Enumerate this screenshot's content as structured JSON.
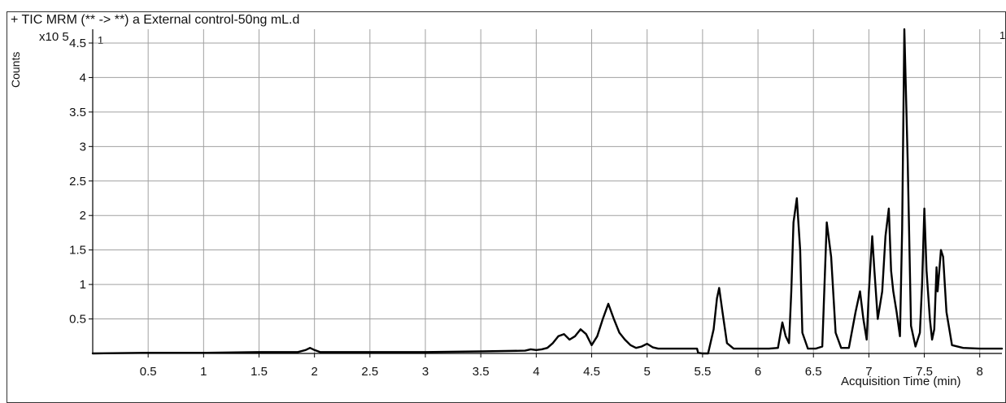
{
  "chart_data": {
    "type": "line",
    "title": "+ TIC MRM (** -> **) a External control-50ng mL.d",
    "ylabel": "Counts",
    "y_multiplier": "x10 5",
    "xlabel": "Acquisition Time (min)",
    "panel_id_left": "1",
    "panel_id_right": "1",
    "xlim": [
      0,
      8.2
    ],
    "ylim": [
      0,
      4.7
    ],
    "x_ticks": [
      0.5,
      1,
      1.5,
      2,
      2.5,
      3,
      3.5,
      4,
      4.5,
      5,
      5.5,
      6,
      6.5,
      7,
      7.5,
      8
    ],
    "x_tick_labels": [
      "0.5",
      "1",
      "1.5",
      "2",
      "2.5",
      "3",
      "3.5",
      "4",
      "4.5",
      "5",
      "5.5",
      "6",
      "6.5",
      "7",
      "7.5",
      "8"
    ],
    "y_ticks": [
      0.5,
      1,
      1.5,
      2,
      2.5,
      3,
      3.5,
      4,
      4.5
    ],
    "y_tick_labels": [
      "0.5",
      "1",
      "1.5",
      "2",
      "2.5",
      "3",
      "3.5",
      "4",
      "4.5"
    ],
    "grid": true,
    "line_color": "#000000",
    "grid_color": "#a0a0a0",
    "series": [
      {
        "x": [
          0.0,
          0.5,
          1.0,
          1.5,
          1.85,
          1.92,
          1.96,
          2.0,
          2.05,
          2.2,
          3.0,
          3.5,
          3.9,
          3.95,
          4.0,
          4.05,
          4.1,
          4.15,
          4.2,
          4.25,
          4.3,
          4.35,
          4.4,
          4.45,
          4.5,
          4.55,
          4.6,
          4.65,
          4.7,
          4.75,
          4.8,
          4.85,
          4.9,
          4.95,
          5.0,
          5.05,
          5.1,
          5.3,
          5.45,
          5.46,
          5.5,
          5.55,
          5.6,
          5.63,
          5.65,
          5.68,
          5.72,
          5.78,
          5.85,
          6.0,
          6.1,
          6.18,
          6.22,
          6.25,
          6.28,
          6.3,
          6.32,
          6.35,
          6.38,
          6.4,
          6.45,
          6.52,
          6.58,
          6.62,
          6.66,
          6.7,
          6.75,
          6.82,
          6.88,
          6.92,
          6.95,
          6.98,
          7.0,
          7.03,
          7.05,
          7.08,
          7.12,
          7.15,
          7.18,
          7.2,
          7.22,
          7.25,
          7.28,
          7.3,
          7.32,
          7.35,
          7.38,
          7.42,
          7.46,
          7.48,
          7.5,
          7.52,
          7.55,
          7.57,
          7.59,
          7.61,
          7.62,
          7.63,
          7.65,
          7.67,
          7.7,
          7.75,
          7.85,
          8.0,
          8.2
        ],
        "y": [
          0.0,
          0.01,
          0.01,
          0.02,
          0.02,
          0.05,
          0.08,
          0.05,
          0.02,
          0.02,
          0.02,
          0.03,
          0.04,
          0.06,
          0.05,
          0.06,
          0.08,
          0.15,
          0.25,
          0.28,
          0.2,
          0.25,
          0.35,
          0.28,
          0.12,
          0.25,
          0.5,
          0.72,
          0.5,
          0.3,
          0.2,
          0.12,
          0.08,
          0.1,
          0.14,
          0.09,
          0.07,
          0.07,
          0.07,
          0.01,
          0.0,
          0.0,
          0.35,
          0.8,
          0.95,
          0.6,
          0.15,
          0.07,
          0.07,
          0.07,
          0.07,
          0.08,
          0.45,
          0.25,
          0.15,
          0.9,
          1.9,
          2.25,
          1.5,
          0.3,
          0.07,
          0.07,
          0.1,
          1.9,
          1.4,
          0.3,
          0.08,
          0.08,
          0.6,
          0.9,
          0.5,
          0.2,
          0.9,
          1.7,
          1.2,
          0.5,
          0.9,
          1.7,
          2.1,
          1.2,
          0.9,
          0.6,
          0.25,
          1.8,
          4.7,
          2.8,
          0.4,
          0.1,
          0.3,
          1.0,
          2.1,
          1.2,
          0.5,
          0.2,
          0.35,
          1.25,
          0.9,
          1.1,
          1.5,
          1.4,
          0.6,
          0.12,
          0.08,
          0.07,
          0.07
        ]
      }
    ]
  }
}
